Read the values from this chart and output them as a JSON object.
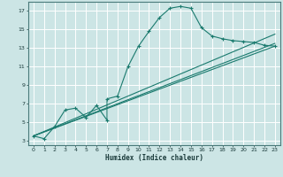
{
  "xlabel": "Humidex (Indice chaleur)",
  "background_color": "#cce5e5",
  "grid_color": "#ffffff",
  "line_color": "#1a7a6e",
  "xlim": [
    -0.5,
    23.5
  ],
  "ylim": [
    2.5,
    18.0
  ],
  "xticks": [
    0,
    1,
    2,
    3,
    4,
    5,
    6,
    7,
    8,
    9,
    10,
    11,
    12,
    13,
    14,
    15,
    16,
    17,
    18,
    19,
    20,
    21,
    22,
    23
  ],
  "yticks": [
    3,
    5,
    7,
    9,
    11,
    13,
    15,
    17
  ],
  "main_series": {
    "x": [
      0,
      1,
      2,
      3,
      4,
      5,
      6,
      7,
      7,
      8,
      9,
      10,
      11,
      12,
      13,
      14,
      15,
      16,
      17,
      18,
      19,
      20,
      21,
      22,
      23
    ],
    "y": [
      3.5,
      3.2,
      4.5,
      6.3,
      6.5,
      5.5,
      6.8,
      5.2,
      7.5,
      7.8,
      11.0,
      13.2,
      14.8,
      16.3,
      17.3,
      17.5,
      17.3,
      15.2,
      14.3,
      14.0,
      13.8,
      13.7,
      13.6,
      13.3,
      13.2
    ]
  },
  "straight_lines": [
    {
      "x": [
        0,
        23
      ],
      "y": [
        3.5,
        13.2
      ]
    },
    {
      "x": [
        0,
        23
      ],
      "y": [
        3.5,
        13.5
      ]
    },
    {
      "x": [
        0,
        23
      ],
      "y": [
        3.5,
        14.5
      ]
    }
  ]
}
